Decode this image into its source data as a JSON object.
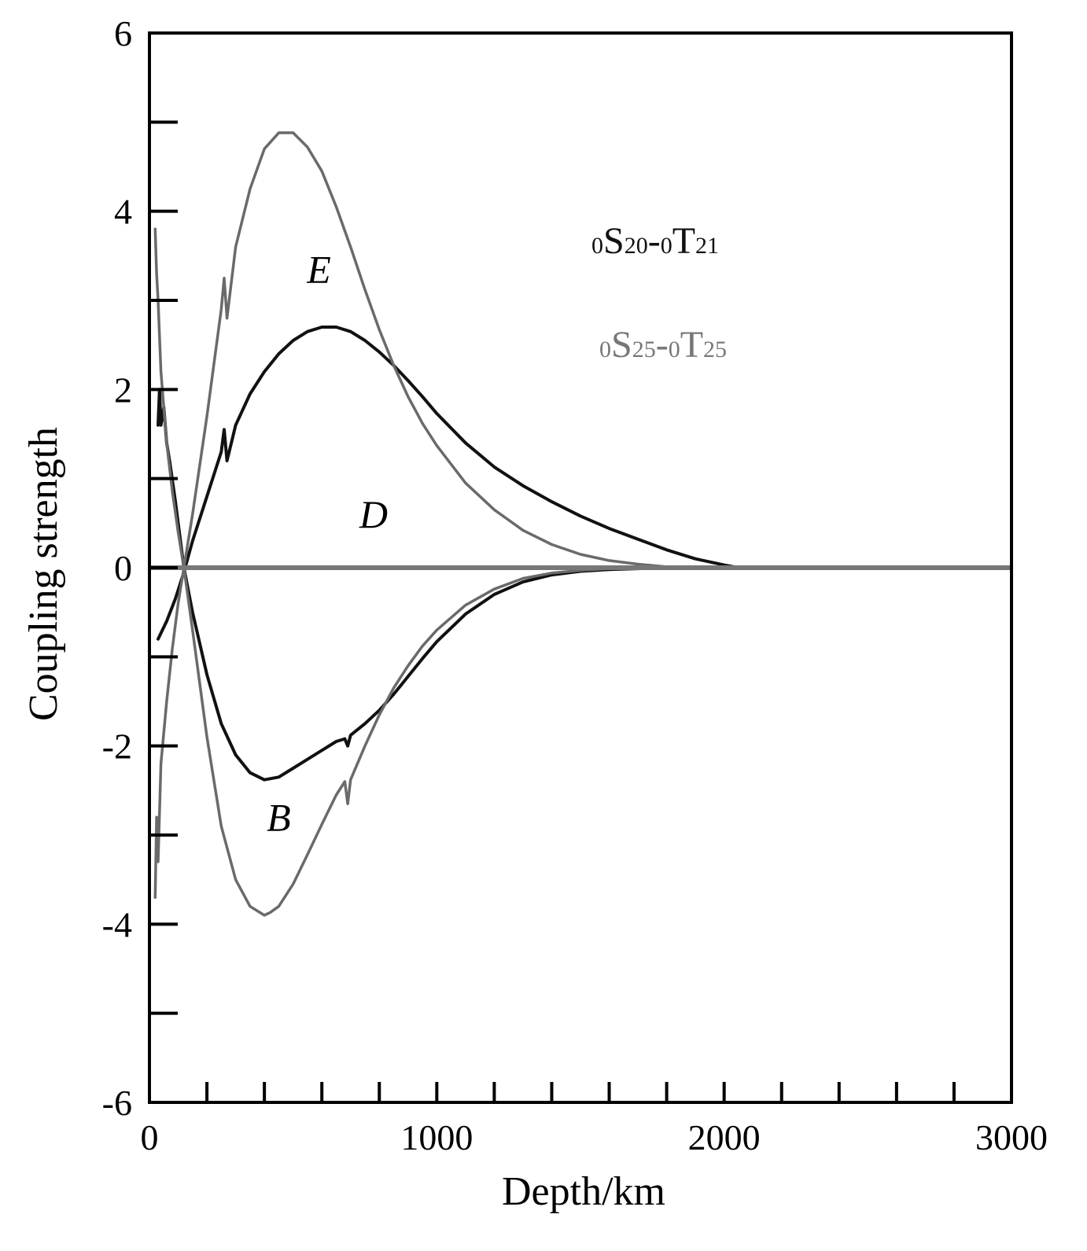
{
  "chart_data": {
    "type": "line",
    "title": "",
    "xlabel": "Depth/km",
    "ylabel": "Coupling strength",
    "xlim": [
      0,
      3000
    ],
    "ylim": [
      -6,
      6
    ],
    "x_ticks": [
      0,
      1000,
      2000,
      3000
    ],
    "x_tick_labels": [
      "0",
      "1000",
      "2000",
      "3000"
    ],
    "x_minor_step": 200,
    "y_ticks": [
      -6,
      -4,
      -2,
      0,
      2,
      4,
      6
    ],
    "y_tick_labels": [
      "-6",
      "-4",
      "-2",
      "0",
      "2",
      "4",
      "6"
    ],
    "y_minor_step": 1,
    "grid": false,
    "legend": {
      "placement": "top-right",
      "entries": [
        {
          "pre": "0",
          "main1": "S",
          "sub1": "20",
          "mid": "-",
          "pre2": "0",
          "main2": "T",
          "sub2": "21",
          "color": "#111111"
        },
        {
          "pre": "0",
          "main1": "S",
          "sub1": "25",
          "mid": "-",
          "pre2": "0",
          "main2": "T",
          "sub2": "25",
          "color": "#777777"
        }
      ]
    },
    "curve_labels": [
      {
        "text": "E",
        "x": 590,
        "y": 3.2
      },
      {
        "text": "D",
        "x": 780,
        "y": 0.45
      },
      {
        "text": "B",
        "x": 450,
        "y": -2.95
      }
    ],
    "series": [
      {
        "mode": "0S20-0T21",
        "curve": "E",
        "color": "#111111",
        "x": [
          30,
          60,
          90,
          120,
          150,
          200,
          250,
          260,
          270,
          300,
          350,
          400,
          450,
          500,
          550,
          600,
          650,
          700,
          750,
          800,
          850,
          900,
          950,
          1000,
          1100,
          1200,
          1300,
          1400,
          1500,
          1600,
          1700,
          1800,
          1900,
          2000,
          2050
        ],
        "y": [
          -0.8,
          -0.6,
          -0.35,
          -0.05,
          0.3,
          0.8,
          1.3,
          1.55,
          1.2,
          1.6,
          1.95,
          2.2,
          2.4,
          2.55,
          2.65,
          2.7,
          2.7,
          2.65,
          2.55,
          2.42,
          2.27,
          2.1,
          1.92,
          1.73,
          1.4,
          1.13,
          0.92,
          0.74,
          0.58,
          0.44,
          0.32,
          0.2,
          0.1,
          0.03,
          0.0
        ]
      },
      {
        "mode": "0S20-0T21",
        "curve": "D",
        "color": "#111111",
        "x": [
          30,
          35,
          40,
          50,
          60,
          70,
          90,
          120,
          150,
          200,
          250,
          300,
          350,
          400,
          450,
          500,
          550,
          600,
          650,
          680,
          690,
          700,
          750,
          800,
          850,
          900,
          950,
          1000,
          1100,
          1200,
          1300,
          1400,
          1500,
          1600,
          1700,
          1800,
          1850
        ],
        "y": [
          1.6,
          2.0,
          1.6,
          1.8,
          1.4,
          1.2,
          0.75,
          0.0,
          -0.5,
          -1.2,
          -1.75,
          -2.1,
          -2.3,
          -2.38,
          -2.35,
          -2.25,
          -2.15,
          -2.05,
          -1.95,
          -1.92,
          -2.0,
          -1.88,
          -1.75,
          -1.6,
          -1.42,
          -1.22,
          -1.02,
          -0.83,
          -0.52,
          -0.3,
          -0.16,
          -0.08,
          -0.04,
          -0.02,
          -0.01,
          0.0,
          0.0
        ]
      },
      {
        "mode": "0S25-0T25",
        "curve": "E",
        "color": "#6a6a6a",
        "x": [
          20,
          25,
          30,
          40,
          60,
          80,
          100,
          120,
          150,
          200,
          250,
          260,
          270,
          300,
          350,
          400,
          450,
          500,
          550,
          600,
          650,
          700,
          750,
          800,
          850,
          900,
          950,
          1000,
          1100,
          1200,
          1300,
          1400,
          1500,
          1600,
          1700,
          1800,
          1850
        ],
        "y": [
          -3.7,
          -2.8,
          -3.3,
          -2.2,
          -1.5,
          -0.9,
          -0.4,
          0.0,
          0.6,
          1.7,
          2.9,
          3.25,
          2.8,
          3.6,
          4.25,
          4.7,
          4.88,
          4.88,
          4.72,
          4.45,
          4.05,
          3.6,
          3.12,
          2.67,
          2.27,
          1.92,
          1.62,
          1.37,
          0.95,
          0.65,
          0.42,
          0.26,
          0.15,
          0.08,
          0.04,
          0.01,
          0.0
        ]
      },
      {
        "mode": "0S25-0T25",
        "curve": "B",
        "color": "#6a6a6a",
        "x": [
          20,
          25,
          30,
          40,
          60,
          80,
          100,
          120,
          150,
          200,
          250,
          300,
          350,
          400,
          420,
          450,
          500,
          550,
          600,
          650,
          680,
          690,
          700,
          750,
          800,
          850,
          900,
          950,
          1000,
          1100,
          1200,
          1300,
          1400,
          1500,
          1600,
          1700,
          1800
        ],
        "y": [
          3.8,
          3.3,
          3.0,
          2.2,
          1.4,
          0.85,
          0.4,
          0.0,
          -0.7,
          -1.9,
          -2.9,
          -3.5,
          -3.8,
          -3.9,
          -3.87,
          -3.8,
          -3.55,
          -3.22,
          -2.88,
          -2.55,
          -2.4,
          -2.65,
          -2.38,
          -2.0,
          -1.65,
          -1.35,
          -1.1,
          -0.88,
          -0.7,
          -0.42,
          -0.24,
          -0.12,
          -0.06,
          -0.03,
          -0.01,
          0.0,
          0.0
        ]
      }
    ]
  }
}
